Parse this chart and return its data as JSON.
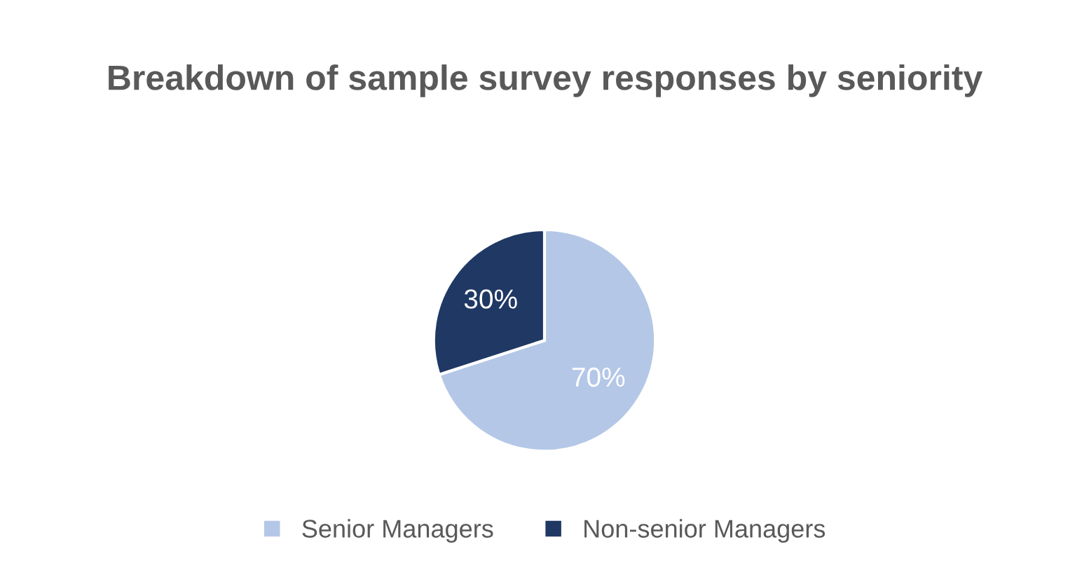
{
  "chart_data": {
    "type": "pie",
    "title": "Breakdown of sample survey responses by seniority",
    "categories": [
      "Senior Managers",
      "Non-senior Managers"
    ],
    "values": [
      70,
      30
    ],
    "colors": [
      "#b4c7e7",
      "#203864"
    ],
    "value_labels": [
      "70%",
      "30%"
    ],
    "legend": "bottom"
  }
}
